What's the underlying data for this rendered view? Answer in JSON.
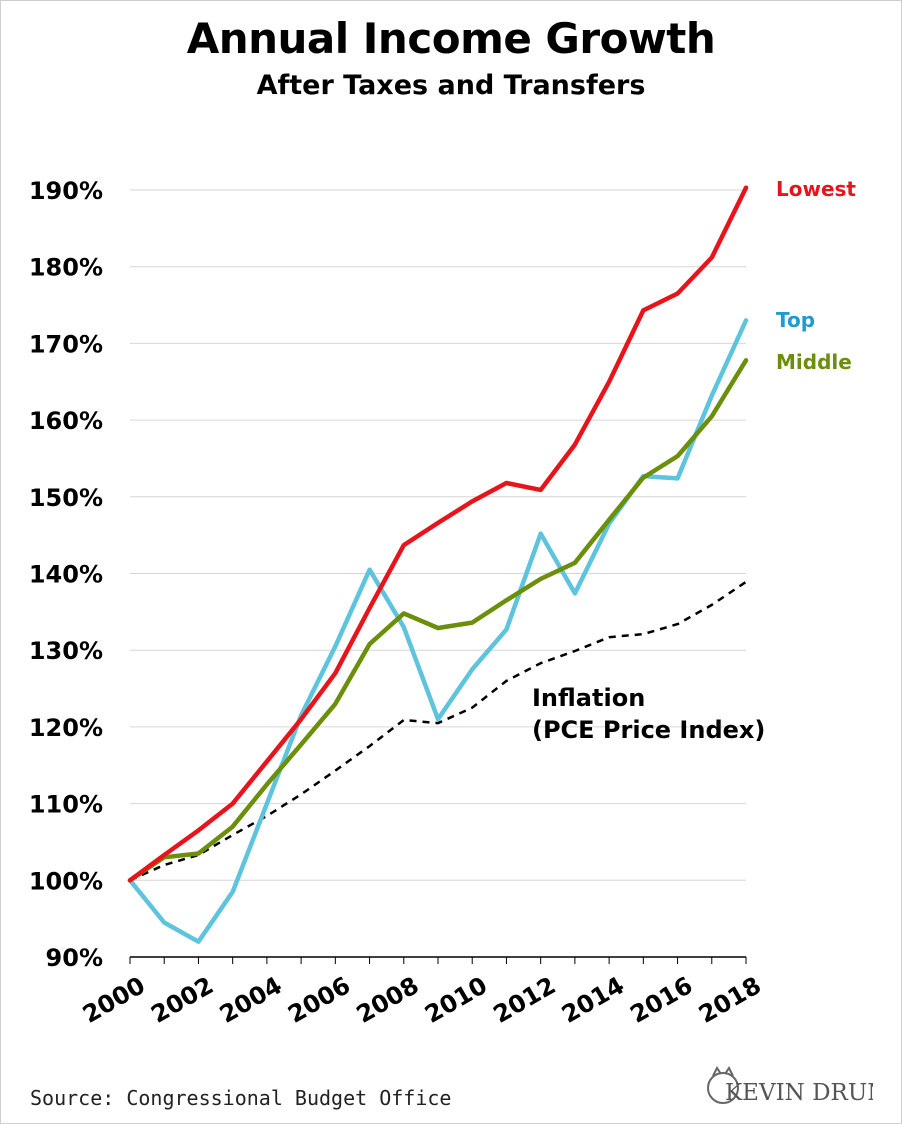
{
  "title": "Annual Income Growth",
  "subtitle": "After Taxes and Transfers",
  "source": "Source: Congressional Budget Office",
  "logo_text": "KEVIN DRUM",
  "chart_data": {
    "type": "line",
    "x": [
      2000,
      2001,
      2002,
      2003,
      2004,
      2005,
      2006,
      2007,
      2008,
      2009,
      2010,
      2011,
      2012,
      2013,
      2014,
      2015,
      2016,
      2017,
      2018
    ],
    "xticks": [
      "2000",
      "2002",
      "2004",
      "2006",
      "2008",
      "2010",
      "2012",
      "2014",
      "2016",
      "2018"
    ],
    "yticks": [
      "90%",
      "100%",
      "110%",
      "120%",
      "130%",
      "140%",
      "150%",
      "160%",
      "170%",
      "180%",
      "190%"
    ],
    "ylim": [
      90,
      190
    ],
    "grid": true,
    "series": [
      {
        "name": "Lowest",
        "color": "#e8141b",
        "dashed": false,
        "values": [
          100,
          103.3,
          106.5,
          110,
          115.5,
          121,
          127,
          135.5,
          143.7,
          146.6,
          149.4,
          151.8,
          150.9,
          156.8,
          165,
          174.3,
          176.5,
          181.2,
          190.3
        ]
      },
      {
        "name": "Top",
        "color": "#5ec4de",
        "dashed": false,
        "values": [
          100,
          94.5,
          92,
          98.5,
          110,
          121.5,
          130.5,
          140.5,
          133,
          121,
          127.5,
          132.7,
          145.2,
          137.4,
          146.5,
          152.7,
          152.4,
          163.2,
          173
        ]
      },
      {
        "name": "Middle",
        "color": "#6b8e0b",
        "dashed": false,
        "values": [
          100,
          103,
          103.5,
          107,
          112.5,
          117.7,
          123,
          130.8,
          134.8,
          132.9,
          133.6,
          136.5,
          139.3,
          141.4,
          147,
          152.5,
          155.3,
          160.5,
          167.8
        ]
      },
      {
        "name": "Inflation",
        "color": "#000000",
        "dashed": true,
        "values": [
          100,
          102,
          103.3,
          105.9,
          108.4,
          111.2,
          114.3,
          117.5,
          120.9,
          120.5,
          122.5,
          126,
          128.3,
          129.9,
          131.7,
          132.1,
          133.4,
          135.9,
          138.9
        ]
      }
    ],
    "labels": {
      "lowest": "Lowest",
      "top": "Top",
      "middle": "Middle",
      "inflation_line1": "Inflation",
      "inflation_line2": "(PCE Price Index)"
    }
  }
}
